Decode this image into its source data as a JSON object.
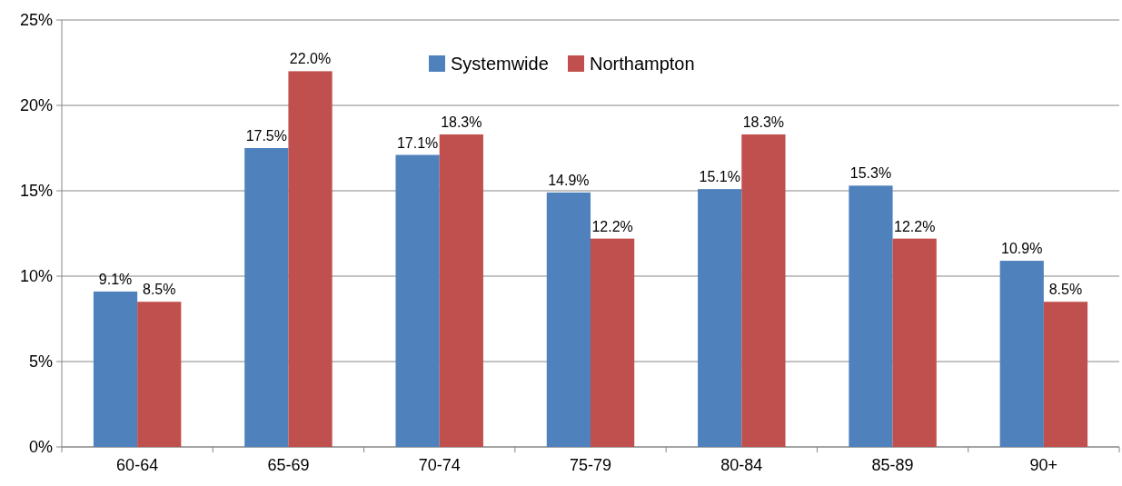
{
  "chart_data": {
    "type": "bar",
    "categories": [
      "60-64",
      "65-69",
      "70-74",
      "75-79",
      "80-84",
      "85-89",
      "90+"
    ],
    "series": [
      {
        "name": "Systemwide",
        "color": "#4f81bd",
        "values": [
          9.1,
          17.5,
          17.1,
          14.9,
          15.1,
          15.3,
          10.9
        ],
        "value_labels": [
          "9.1%",
          "17.5%",
          "17.1%",
          "14.9%",
          "15.1%",
          "15.3%",
          "10.9%"
        ]
      },
      {
        "name": "Northampton",
        "color": "#c0504d",
        "values": [
          8.5,
          22.0,
          18.3,
          12.2,
          18.3,
          12.2,
          8.5
        ],
        "value_labels": [
          "8.5%",
          "22.0%",
          "18.3%",
          "12.2%",
          "18.3%",
          "12.2%",
          "8.5%"
        ]
      }
    ],
    "ylim": [
      0,
      25
    ],
    "yticks": [
      {
        "value": 0,
        "label": "0%"
      },
      {
        "value": 5,
        "label": "5%"
      },
      {
        "value": 10,
        "label": "10%"
      },
      {
        "value": 15,
        "label": "15%"
      },
      {
        "value": 20,
        "label": "20%"
      },
      {
        "value": 25,
        "label": "25%"
      }
    ],
    "grid": "y",
    "legend": "top"
  }
}
